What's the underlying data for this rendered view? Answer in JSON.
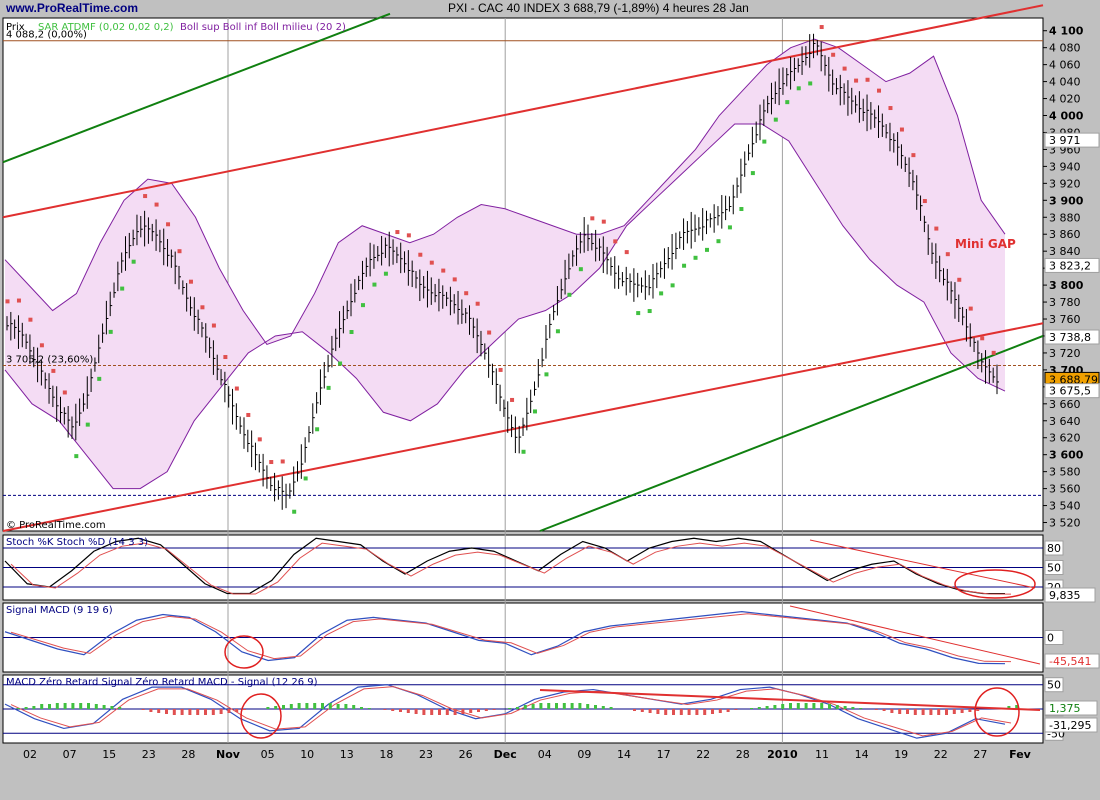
{
  "header": {
    "site": "www.ProRealTime.com",
    "title": "PXI - CAC 40 INDEX     3 688,79 (-1,89%)     4 heures  28 Jan"
  },
  "colors": {
    "background": "#c0c0c0",
    "plot_bg": "#ffffff",
    "band_fill": "#f4dcf4",
    "band_line": "#8020a0",
    "sar_up": "#40c040",
    "sar_down": "#e05050",
    "channel_red": "#e03030",
    "channel_green": "#108010",
    "ellipse": "#e02020",
    "price_box": "#f0a000"
  },
  "chart_data": [
    {
      "type": "line",
      "panel": "price",
      "title": "PXI - CAC 40 INDEX",
      "ylabel": "Prix",
      "ylim": [
        3510,
        4115
      ],
      "yticks": [
        3520,
        3540,
        3560,
        3580,
        3600,
        3620,
        3640,
        3660,
        3680,
        3700,
        3720,
        3740,
        3760,
        3780,
        3800,
        3820,
        3840,
        3860,
        3880,
        3900,
        3920,
        3940,
        3960,
        3980,
        4000,
        4020,
        4040,
        4060,
        4080,
        4100
      ],
      "x_ticks": [
        "02",
        "07",
        "15",
        "23",
        "28",
        "Nov",
        "05",
        "10",
        "13",
        "18",
        "23",
        "26",
        "Dec",
        "04",
        "09",
        "14",
        "17",
        "22",
        "28",
        "2010",
        "11",
        "14",
        "19",
        "22",
        "27",
        "Fev"
      ],
      "x_month_labels": [
        "Nov",
        "Dec",
        "2010",
        "Fev"
      ],
      "legend": {
        "sar": "SAR ATDMF (0,02 0,02 0,2)",
        "boll": "Boll sup Boll inf Boll milieu (20 2)"
      },
      "header_values": {
        "last": "3 688,79",
        "change": "(-1,89%)",
        "interval": "4 heures",
        "date": "28 Jan"
      },
      "level_labels": [
        {
          "text": "4 088,2 (0,00%)",
          "value": 4088.2
        },
        {
          "text": "3 705,2 (23,60%)",
          "value": 3705.2
        }
      ],
      "right_labels": [
        {
          "text": "3 971",
          "value": 3971
        },
        {
          "text": "3 823,2",
          "value": 3823.2
        },
        {
          "text": "3 738,8",
          "value": 3738.8
        },
        {
          "text": "3 688,79",
          "value": 3688.79
        },
        {
          "text": "3 675,5",
          "value": 3675.5
        }
      ],
      "annotation": "Mini GAP",
      "price_path": [
        3755,
        3740,
        3700,
        3660,
        3630,
        3680,
        3760,
        3830,
        3870,
        3860,
        3830,
        3780,
        3740,
        3690,
        3640,
        3600,
        3565,
        3550,
        3600,
        3680,
        3740,
        3790,
        3830,
        3845,
        3830,
        3800,
        3790,
        3780,
        3760,
        3720,
        3660,
        3615,
        3680,
        3760,
        3820,
        3860,
        3840,
        3810,
        3800,
        3800,
        3830,
        3860,
        3870,
        3880,
        3900,
        3960,
        4010,
        4040,
        4060,
        4085,
        4040,
        4020,
        4005,
        3990,
        3960,
        3920,
        3840,
        3800,
        3760,
        3710,
        3688.79
      ],
      "boll_upper": [
        3830,
        3800,
        3770,
        3790,
        3850,
        3900,
        3925,
        3920,
        3880,
        3820,
        3770,
        3730,
        3740,
        3790,
        3850,
        3870,
        3860,
        3850,
        3860,
        3880,
        3895,
        3890,
        3880,
        3870,
        3860,
        3860,
        3870,
        3900,
        3930,
        3960,
        4000,
        4030,
        4060,
        4080,
        4090,
        4080,
        4060,
        4040,
        4050,
        4070,
        4000,
        3900,
        3860
      ],
      "boll_lower": [
        3700,
        3660,
        3640,
        3600,
        3560,
        3560,
        3580,
        3640,
        3680,
        3720,
        3740,
        3745,
        3720,
        3690,
        3650,
        3640,
        3660,
        3700,
        3730,
        3760,
        3770,
        3790,
        3820,
        3870,
        3900,
        3930,
        3960,
        3990,
        3990,
        3970,
        3920,
        3870,
        3830,
        3800,
        3780,
        3720,
        3690,
        3675
      ],
      "channels": [
        {
          "color": "red",
          "from": {
            "x": "start",
            "y": 3880
          },
          "to": {
            "x": "end",
            "y": 4130
          }
        },
        {
          "color": "red",
          "from": {
            "x": "start",
            "y": 3510
          },
          "to": {
            "x": "end",
            "y": 3755
          }
        },
        {
          "color": "green",
          "from": {
            "x": "start",
            "y": 3945
          },
          "to": {
            "x": "07-15",
            "y": 4120
          }
        },
        {
          "color": "green",
          "from": {
            "x": "Dec-04",
            "y": 3510
          },
          "to": {
            "x": "end",
            "y": 3740
          }
        }
      ],
      "hlines": [
        4088.2,
        3705.2,
        3552
      ]
    },
    {
      "type": "line",
      "panel": "stochastic",
      "title": "Stoch %K Stoch %D (14 3 3)",
      "ylim": [
        0,
        100
      ],
      "yticks": [
        80,
        50,
        20
      ],
      "value_label": "9,835",
      "k": [
        60,
        25,
        20,
        45,
        75,
        90,
        95,
        85,
        55,
        25,
        10,
        10,
        30,
        70,
        95,
        90,
        85,
        60,
        40,
        60,
        75,
        80,
        75,
        60,
        45,
        70,
        90,
        80,
        60,
        80,
        90,
        95,
        90,
        95,
        90,
        70,
        50,
        30,
        45,
        55,
        60,
        40,
        25,
        15,
        10,
        9.835
      ]
    },
    {
      "type": "line",
      "panel": "macd",
      "title": "Signal MACD (9 19 6)",
      "yticks": [
        0
      ],
      "value_label": "-45,541",
      "macd": [
        10,
        -5,
        -20,
        -30,
        5,
        30,
        40,
        35,
        10,
        -25,
        -40,
        -35,
        5,
        30,
        35,
        30,
        25,
        10,
        -5,
        -10,
        -30,
        -15,
        10,
        20,
        25,
        30,
        35,
        40,
        45,
        40,
        35,
        30,
        25,
        10,
        -10,
        -20,
        -35,
        -45,
        -45.541
      ]
    },
    {
      "type": "line",
      "panel": "macd-zero-lag",
      "title": "MACD Zéro Retard Signal Zéro Retard MACD - Signal (12 26 9)",
      "yticks": [
        50,
        0,
        -50
      ],
      "value_labels": [
        "1,375",
        "-31,295"
      ],
      "macd": [
        10,
        -20,
        -40,
        -30,
        20,
        45,
        45,
        20,
        -20,
        -45,
        -40,
        10,
        45,
        50,
        30,
        0,
        -20,
        -10,
        20,
        35,
        40,
        30,
        20,
        10,
        20,
        40,
        45,
        30,
        10,
        -20,
        -40,
        -60,
        -50,
        -20,
        -31.295
      ]
    }
  ],
  "footer": {
    "copyright": "© ProRealTime.com"
  }
}
